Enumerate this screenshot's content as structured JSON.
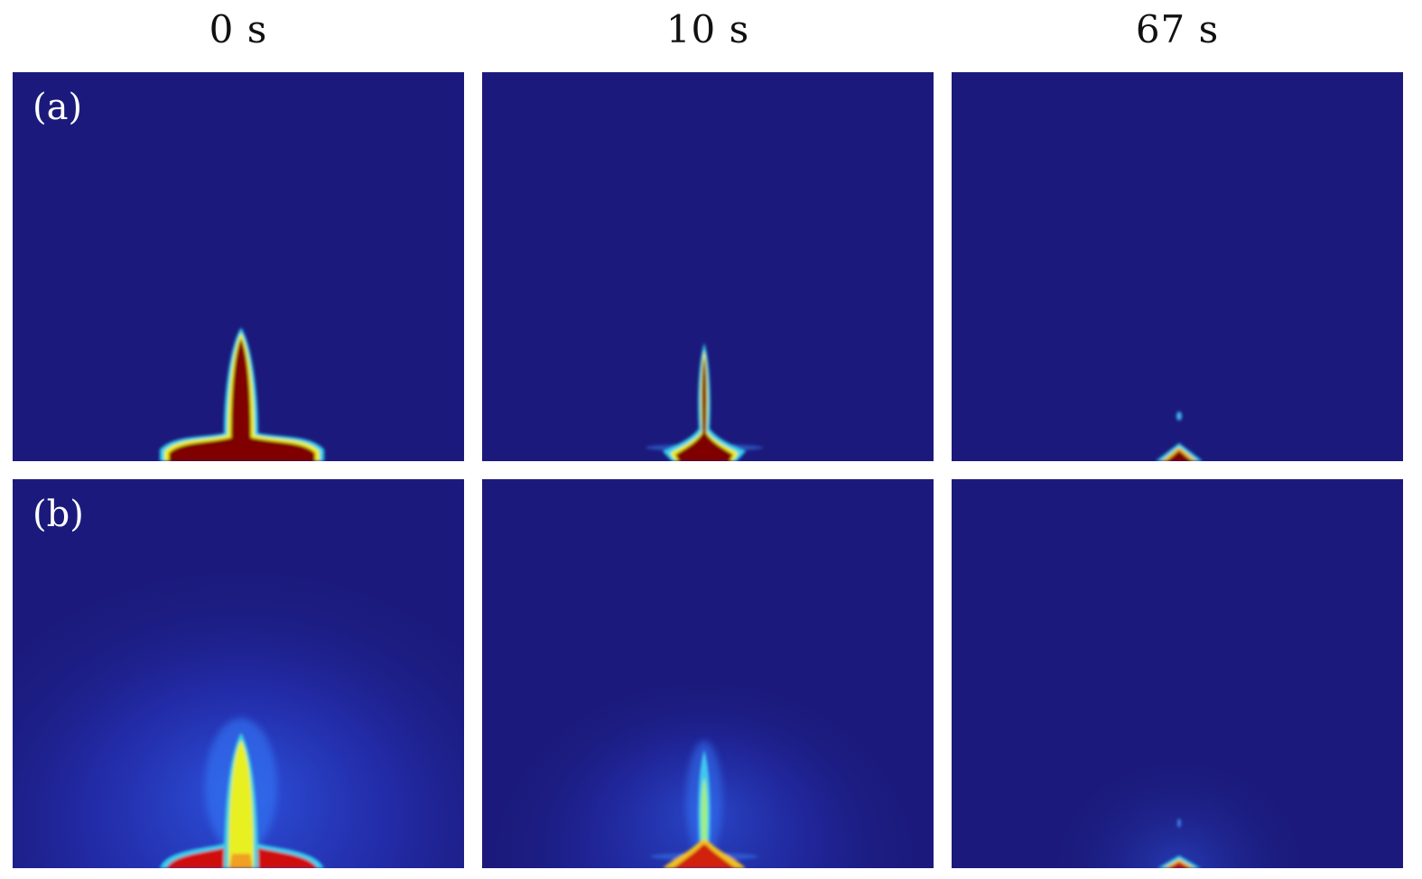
{
  "figure": {
    "column_titles": [
      "0 s",
      "10 s",
      "67 s"
    ],
    "row_labels": [
      "(a)",
      "(b)"
    ],
    "colormap": "jet",
    "colors": {
      "background": "#1b1a7c",
      "high": "#800000",
      "mid": "#f0f020",
      "edge": "#20c0f0"
    }
  }
}
